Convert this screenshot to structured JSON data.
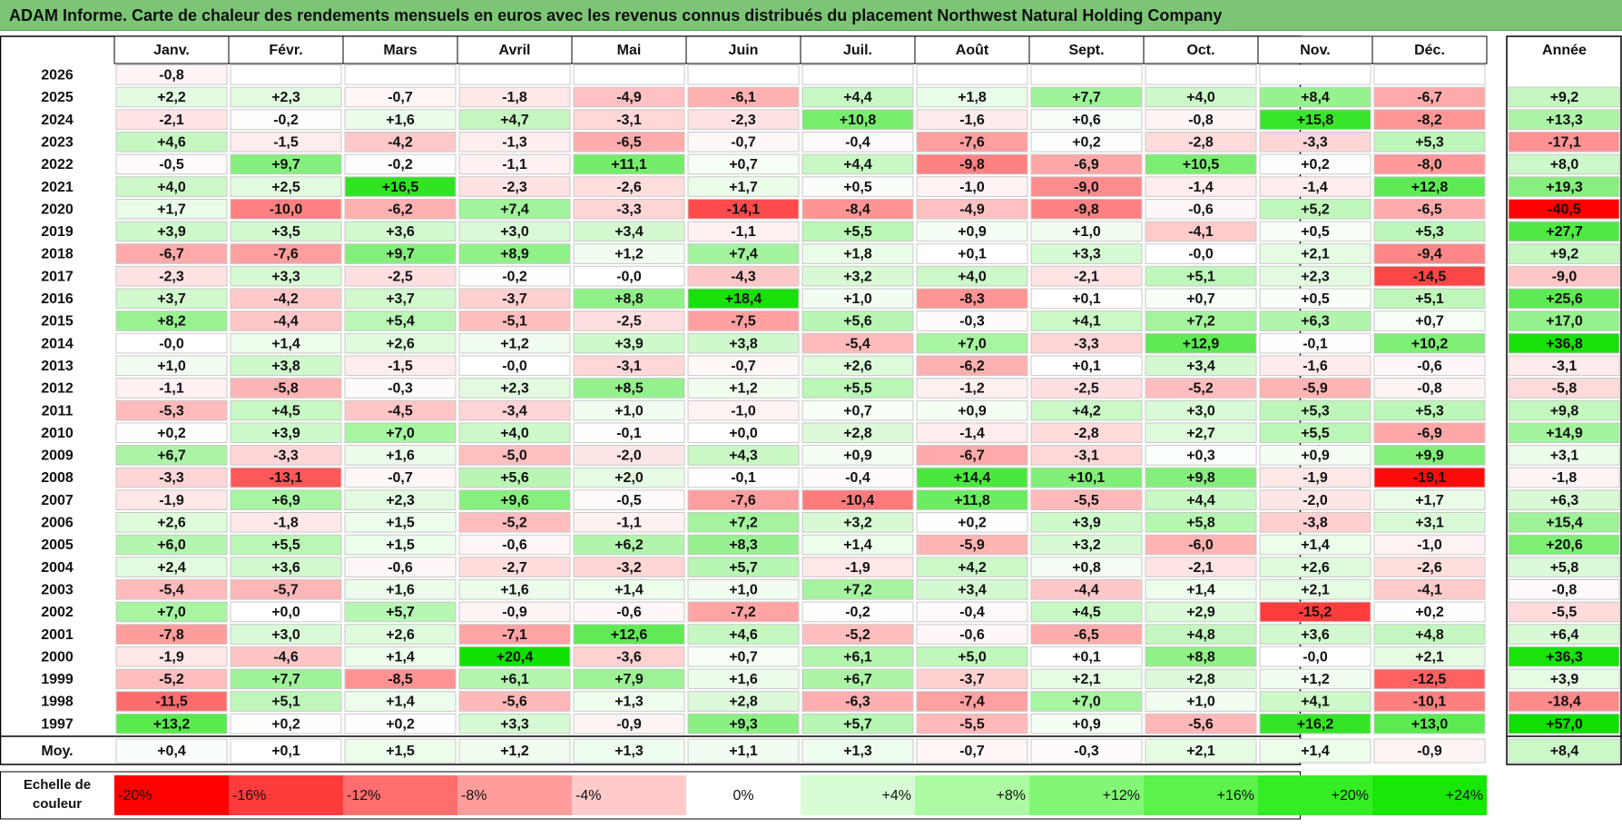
{
  "title": "ADAM Informe. Carte de chaleur des rendements mensuels en euros avec les revenus connus distribués du placement Northwest Natural Holding Company",
  "chart_data": {
    "type": "heatmap",
    "months": [
      "Janv.",
      "Févr.",
      "Mars",
      "Avril",
      "Mai",
      "Juin",
      "Juil.",
      "Août",
      "Sept.",
      "Oct.",
      "Nov.",
      "Déc."
    ],
    "year_header": "Année",
    "rows": [
      {
        "year": "2026",
        "values": [
          "-0,8",
          "",
          "",
          "",
          "",
          "",
          "",
          "",
          "",
          "",
          "",
          ""
        ],
        "annual": ""
      },
      {
        "year": "2025",
        "values": [
          "+2,2",
          "+2,3",
          "-0,7",
          "-1,8",
          "-4,9",
          "-6,1",
          "+4,4",
          "+1,8",
          "+7,7",
          "+4,0",
          "+8,4",
          "-6,7"
        ],
        "annual": "+9,2"
      },
      {
        "year": "2024",
        "values": [
          "-2,1",
          "-0,2",
          "+1,6",
          "+4,7",
          "-3,1",
          "-2,3",
          "+10,8",
          "-1,6",
          "+0,6",
          "-0,8",
          "+15,8",
          "-8,2"
        ],
        "annual": "+13,3"
      },
      {
        "year": "2023",
        "values": [
          "+4,6",
          "-1,5",
          "-4,2",
          "-1,3",
          "-6,5",
          "-0,7",
          "-0,4",
          "-7,6",
          "+0,2",
          "-2,8",
          "-3,3",
          "+5,3"
        ],
        "annual": "-17,1"
      },
      {
        "year": "2022",
        "values": [
          "-0,5",
          "+9,7",
          "-0,2",
          "-1,1",
          "+11,1",
          "+0,7",
          "+4,4",
          "-9,8",
          "-6,9",
          "+10,5",
          "+0,2",
          "-8,0"
        ],
        "annual": "+8,0"
      },
      {
        "year": "2021",
        "values": [
          "+4,0",
          "+2,5",
          "+16,5",
          "-2,3",
          "-2,6",
          "+1,7",
          "+0,5",
          "-1,0",
          "-9,0",
          "-1,4",
          "-1,4",
          "+12,8"
        ],
        "annual": "+19,3"
      },
      {
        "year": "2020",
        "values": [
          "+1,7",
          "-10,0",
          "-6,2",
          "+7,4",
          "-3,3",
          "-14,1",
          "-8,4",
          "-4,9",
          "-9,8",
          "-0,6",
          "+5,2",
          "-6,5"
        ],
        "annual": "-40,5"
      },
      {
        "year": "2019",
        "values": [
          "+3,9",
          "+3,5",
          "+3,6",
          "+3,0",
          "+3,4",
          "-1,1",
          "+5,5",
          "+0,9",
          "+1,0",
          "-4,1",
          "+0,5",
          "+5,3"
        ],
        "annual": "+27,7"
      },
      {
        "year": "2018",
        "values": [
          "-6,7",
          "-7,6",
          "+9,7",
          "+8,9",
          "+1,2",
          "+7,4",
          "+1,8",
          "+0,1",
          "+3,3",
          "-0,0",
          "+2,1",
          "-9,4"
        ],
        "annual": "+9,2"
      },
      {
        "year": "2017",
        "values": [
          "-2,3",
          "+3,3",
          "-2,5",
          "-0,2",
          "-0,0",
          "-4,3",
          "+3,2",
          "+4,0",
          "-2,1",
          "+5,1",
          "+2,3",
          "-14,5"
        ],
        "annual": "-9,0"
      },
      {
        "year": "2016",
        "values": [
          "+3,7",
          "-4,2",
          "+3,7",
          "-3,7",
          "+8,8",
          "+18,4",
          "+1,0",
          "-8,3",
          "+0,1",
          "+0,7",
          "+0,5",
          "+5,1"
        ],
        "annual": "+25,6"
      },
      {
        "year": "2015",
        "values": [
          "+8,2",
          "-4,4",
          "+5,4",
          "-5,1",
          "-2,5",
          "-7,5",
          "+5,6",
          "-0,3",
          "+4,1",
          "+7,2",
          "+6,3",
          "+0,7"
        ],
        "annual": "+17,0"
      },
      {
        "year": "2014",
        "values": [
          "-0,0",
          "+1,4",
          "+2,6",
          "+1,2",
          "+3,9",
          "+3,8",
          "-5,4",
          "+7,0",
          "-3,3",
          "+12,9",
          "-0,1",
          "+10,2"
        ],
        "annual": "+36,8"
      },
      {
        "year": "2013",
        "values": [
          "+1,0",
          "+3,8",
          "-1,5",
          "-0,0",
          "-3,1",
          "-0,7",
          "+2,6",
          "-6,2",
          "+0,1",
          "+3,4",
          "-1,6",
          "-0,6"
        ],
        "annual": "-3,1"
      },
      {
        "year": "2012",
        "values": [
          "-1,1",
          "-5,8",
          "-0,3",
          "+2,3",
          "+8,5",
          "+1,2",
          "+5,5",
          "-1,2",
          "-2,5",
          "-5,2",
          "-5,9",
          "-0,8"
        ],
        "annual": "-5,8"
      },
      {
        "year": "2011",
        "values": [
          "-5,3",
          "+4,5",
          "-4,5",
          "-3,4",
          "+1,0",
          "-1,0",
          "+0,7",
          "+0,9",
          "+4,2",
          "+3,0",
          "+5,3",
          "+5,3"
        ],
        "annual": "+9,8"
      },
      {
        "year": "2010",
        "values": [
          "+0,2",
          "+3,9",
          "+7,0",
          "+4,0",
          "-0,1",
          "+0,0",
          "+2,8",
          "-1,4",
          "-2,8",
          "+2,7",
          "+5,5",
          "-6,9"
        ],
        "annual": "+14,9"
      },
      {
        "year": "2009",
        "values": [
          "+6,7",
          "-3,3",
          "+1,6",
          "-5,0",
          "-2,0",
          "+4,3",
          "+0,9",
          "-6,7",
          "-3,1",
          "+0,3",
          "+0,9",
          "+9,9"
        ],
        "annual": "+3,1"
      },
      {
        "year": "2008",
        "values": [
          "-3,3",
          "-13,1",
          "-0,7",
          "+5,6",
          "+2,0",
          "-0,1",
          "-0,4",
          "+14,4",
          "+10,1",
          "+9,8",
          "-1,9",
          "-19,1"
        ],
        "annual": "-1,8"
      },
      {
        "year": "2007",
        "values": [
          "-1,9",
          "+6,9",
          "+2,3",
          "+9,6",
          "-0,5",
          "-7,6",
          "-10,4",
          "+11,8",
          "-5,5",
          "+4,4",
          "-2,0",
          "+1,7"
        ],
        "annual": "+6,3"
      },
      {
        "year": "2006",
        "values": [
          "+2,6",
          "-1,8",
          "+1,5",
          "-5,2",
          "-1,1",
          "+7,2",
          "+3,2",
          "+0,2",
          "+3,9",
          "+5,8",
          "-3,8",
          "+3,1"
        ],
        "annual": "+15,4"
      },
      {
        "year": "2005",
        "values": [
          "+6,0",
          "+5,5",
          "+1,5",
          "-0,6",
          "+6,2",
          "+8,3",
          "+1,4",
          "-5,9",
          "+3,2",
          "-6,0",
          "+1,4",
          "-1,0"
        ],
        "annual": "+20,6"
      },
      {
        "year": "2004",
        "values": [
          "+2,4",
          "+3,6",
          "-0,6",
          "-2,7",
          "-3,2",
          "+5,7",
          "-1,9",
          "+4,2",
          "+0,8",
          "-2,1",
          "+2,6",
          "-2,6"
        ],
        "annual": "+5,8"
      },
      {
        "year": "2003",
        "values": [
          "-5,4",
          "-5,7",
          "+1,6",
          "+1,6",
          "+1,4",
          "+1,0",
          "+7,2",
          "+3,4",
          "-4,4",
          "+1,4",
          "+2,1",
          "-4,1"
        ],
        "annual": "-0,8"
      },
      {
        "year": "2002",
        "values": [
          "+7,0",
          "+0,0",
          "+5,7",
          "-0,9",
          "-0,6",
          "-7,2",
          "-0,2",
          "-0,4",
          "+4,5",
          "+2,9",
          "-15,2",
          "+0,2"
        ],
        "annual": "-5,5"
      },
      {
        "year": "2001",
        "values": [
          "-7,8",
          "+3,0",
          "+2,6",
          "-7,1",
          "+12,6",
          "+4,6",
          "-5,2",
          "-0,6",
          "-6,5",
          "+4,8",
          "+3,6",
          "+4,8"
        ],
        "annual": "+6,4"
      },
      {
        "year": "2000",
        "values": [
          "-1,9",
          "-4,6",
          "+1,4",
          "+20,4",
          "-3,6",
          "+0,7",
          "+6,1",
          "+5,0",
          "+0,1",
          "+8,8",
          "-0,0",
          "+2,1"
        ],
        "annual": "+36,3"
      },
      {
        "year": "1999",
        "values": [
          "-5,2",
          "+7,7",
          "-8,5",
          "+6,1",
          "+7,9",
          "+1,6",
          "+6,7",
          "-3,7",
          "+2,1",
          "+2,8",
          "+1,2",
          "-12,5"
        ],
        "annual": "+3,9"
      },
      {
        "year": "1998",
        "values": [
          "-11,5",
          "+5,1",
          "+1,4",
          "-5,6",
          "+1,3",
          "+2,8",
          "-6,3",
          "-7,4",
          "+7,0",
          "+1,0",
          "+4,1",
          "-10,1"
        ],
        "annual": "-18,4"
      },
      {
        "year": "1997",
        "values": [
          "+13,2",
          "+0,2",
          "+0,2",
          "+3,3",
          "-0,9",
          "+9,3",
          "+5,7",
          "-5,5",
          "+0,9",
          "-5,6",
          "+16,2",
          "+13,0"
        ],
        "annual": "+57,0"
      }
    ],
    "average": {
      "label": "Moy.",
      "values": [
        "+0,4",
        "+0,1",
        "+1,5",
        "+1,2",
        "+1,3",
        "+1,1",
        "+1,3",
        "-0,7",
        "-0,3",
        "+2,1",
        "+1,4",
        "-0,9"
      ],
      "annual": "+8,4"
    },
    "scale": {
      "label_line1": "Echelle de",
      "label_line2": "couleur",
      "steps": [
        "-20%",
        "-16%",
        "-12%",
        "-8%",
        "-4%",
        "0%",
        "+4%",
        "+8%",
        "+12%",
        "+16%",
        "+20%",
        "+24%"
      ],
      "step_values": [
        -20,
        -16,
        -12,
        -8,
        -4,
        0,
        4,
        8,
        12,
        16,
        20,
        24
      ],
      "colors": [
        "#ff0000",
        "#ff3c3c",
        "#ff6e6e",
        "#ff9c9c",
        "#ffcaca",
        "#ffffff",
        "#d8fdd4",
        "#acfba2",
        "#82f775",
        "#5cf24b",
        "#34ed24",
        "#18e808"
      ]
    },
    "colors": {
      "negative_max": "#ff0000",
      "positive_max": "#10e000",
      "title_bg": "#7cc576",
      "grid": "#bbbbbb"
    }
  }
}
